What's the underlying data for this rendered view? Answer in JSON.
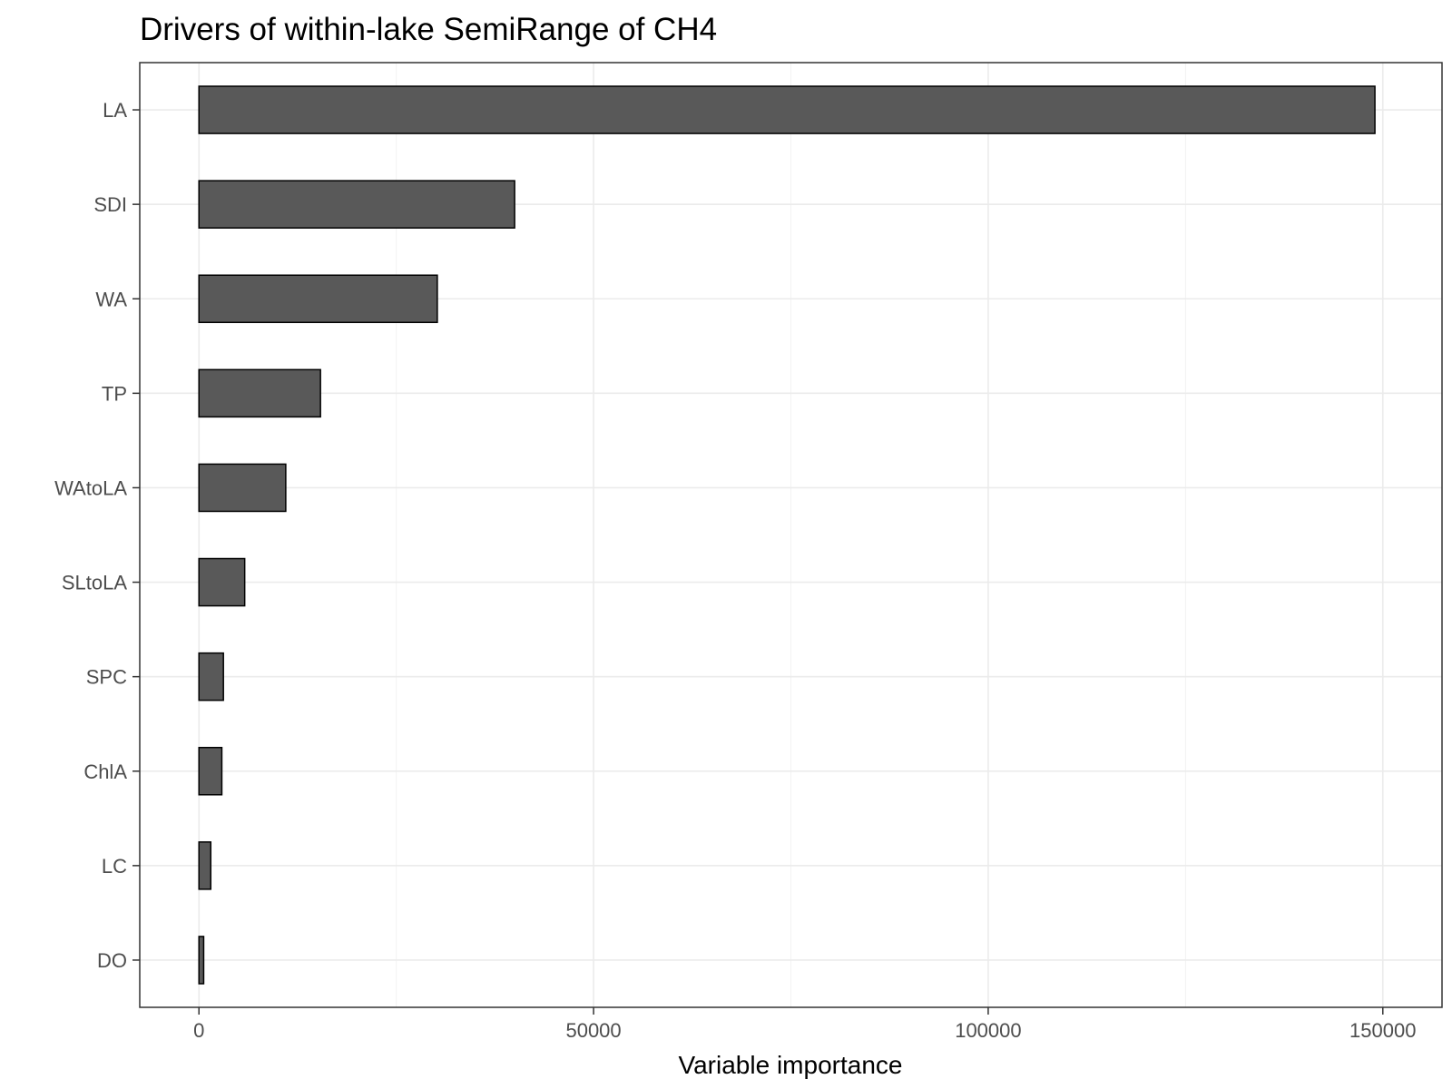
{
  "chart_data": {
    "type": "bar",
    "orientation": "horizontal",
    "title": "Drivers of within-lake SemiRange of CH4",
    "xlabel": "Variable importance",
    "ylabel": "",
    "categories": [
      "LA",
      "SDI",
      "WA",
      "TP",
      "WAtoLA",
      "SLtoLA",
      "SPC",
      "ChlA",
      "LC",
      "DO"
    ],
    "values": [
      149000,
      40000,
      30200,
      15400,
      11000,
      5800,
      3100,
      2900,
      1500,
      600
    ],
    "xlim": [
      -7500,
      157500
    ],
    "xticks": [
      0,
      50000,
      100000,
      150000
    ],
    "xtick_labels": [
      "0",
      "50000",
      "100000",
      "150000"
    ],
    "grid": true,
    "bar_color": "#595959",
    "bar_edge_color": "#000000"
  }
}
